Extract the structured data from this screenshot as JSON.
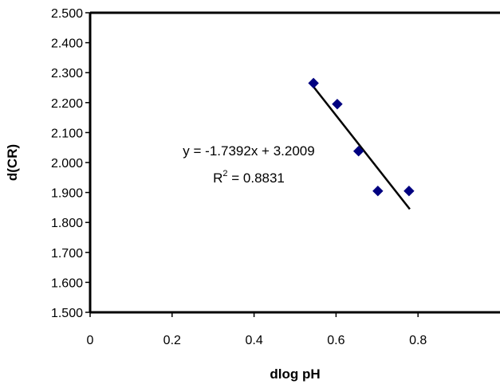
{
  "chart_data": {
    "type": "scatter",
    "title": "",
    "xlabel": "dlog pH",
    "ylabel": "d(CR)",
    "xlim": [
      0,
      1.0
    ],
    "ylim": [
      1.5,
      2.5
    ],
    "x_ticks": [
      "0",
      "0.2",
      "0.4",
      "0.6",
      "0.8"
    ],
    "x_tick_values": [
      0,
      0.2,
      0.4,
      0.6,
      0.8
    ],
    "y_ticks": [
      "1.500",
      "1.600",
      "1.700",
      "1.800",
      "1.900",
      "2.000",
      "2.100",
      "2.200",
      "2.300",
      "2.400",
      "2.500"
    ],
    "y_tick_values": [
      1.5,
      1.6,
      1.7,
      1.8,
      1.9,
      2.0,
      2.1,
      2.2,
      2.3,
      2.4,
      2.5
    ],
    "grid": false,
    "legend": "none",
    "series": [
      {
        "marker": "diamond",
        "color": "#000080",
        "points": [
          {
            "x": 0.545,
            "y": 2.265
          },
          {
            "x": 0.603,
            "y": 2.195
          },
          {
            "x": 0.655,
            "y": 2.038
          },
          {
            "x": 0.702,
            "y": 1.905
          },
          {
            "x": 0.778,
            "y": 1.905
          }
        ]
      }
    ],
    "trendline": {
      "type": "linear",
      "slope": -1.7392,
      "intercept": 3.2009,
      "x_range": [
        0.54,
        0.78
      ],
      "color": "#000000"
    },
    "annotations": {
      "equation": "y = -1.7392x + 3.2009",
      "r_squared_prefix": "R",
      "r_squared_sup": "2",
      "r_squared_value": " = 0.8831"
    }
  }
}
